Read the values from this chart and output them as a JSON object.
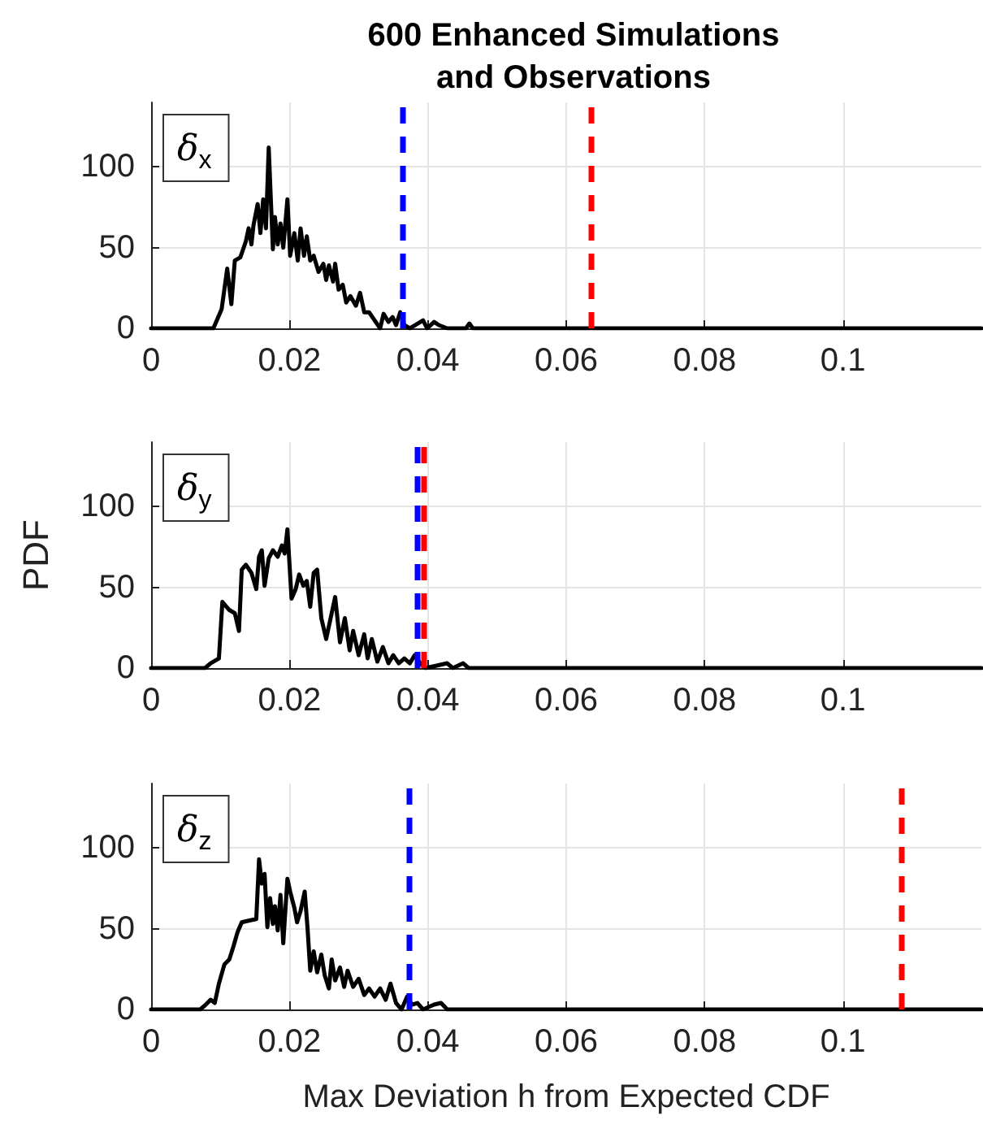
{
  "chart_data": [
    {
      "type": "line",
      "title": "600 Enhanced Simulations\nand Observations",
      "annotations": [
        "δ$_{x}$"
      ],
      "xlim": [
        0,
        0.12
      ],
      "xticks": [
        0,
        0.02,
        0.04,
        0.06,
        0.08,
        0.1
      ],
      "ylim": [
        0,
        140
      ],
      "yticks": [
        0,
        50,
        100
      ],
      "grid": true,
      "line_style": "solid",
      "marker": "none",
      "ref_lines": [
        {
          "axis": "x",
          "value": 0.0364,
          "color": "#0000ff",
          "line_style": "dashed"
        },
        {
          "axis": "x",
          "value": 0.0636,
          "color": "#ff0000",
          "line_style": "dashed"
        }
      ],
      "series": [
        {
          "color": "#000000",
          "x": [
            0,
            0.009,
            0.0102,
            0.011,
            0.0116,
            0.0121,
            0.0129,
            0.0137,
            0.0141,
            0.0145,
            0.0148,
            0.0154,
            0.0158,
            0.0162,
            0.0166,
            0.017,
            0.0176,
            0.0179,
            0.0183,
            0.0187,
            0.0191,
            0.0197,
            0.0201,
            0.0207,
            0.0212,
            0.0216,
            0.0221,
            0.0225,
            0.023,
            0.0235,
            0.0242,
            0.0249,
            0.0253,
            0.0257,
            0.0263,
            0.0266,
            0.0271,
            0.0277,
            0.0282,
            0.0288,
            0.0296,
            0.0302,
            0.0308,
            0.0315,
            0.0323,
            0.0331,
            0.0336,
            0.0343,
            0.0349,
            0.0354,
            0.036,
            0.0366,
            0.0374,
            0.0393,
            0.0399,
            0.0409,
            0.0416,
            0.0428,
            0.0455,
            0.046,
            0.0465,
            0.12
          ],
          "values": [
            0,
            0,
            12,
            37,
            15,
            42,
            44,
            54,
            62,
            52,
            64,
            77,
            59,
            80,
            62,
            112,
            49,
            69,
            52,
            65,
            50,
            80,
            45,
            59,
            42,
            62,
            45,
            57,
            42,
            45,
            35,
            40,
            30,
            39,
            29,
            40,
            24,
            27,
            16,
            20,
            14,
            22,
            10,
            10,
            5,
            0,
            9,
            4,
            7,
            2,
            10,
            2,
            0,
            5,
            0,
            4,
            2,
            0,
            0,
            3,
            0,
            0
          ]
        }
      ]
    },
    {
      "type": "line",
      "ylabel": "PDF",
      "annotations": [
        "δ$_{y}$"
      ],
      "xlim": [
        0,
        0.12
      ],
      "xticks": [
        0,
        0.02,
        0.04,
        0.06,
        0.08,
        0.1
      ],
      "ylim": [
        0,
        140
      ],
      "yticks": [
        0,
        50,
        100
      ],
      "grid": true,
      "line_style": "solid",
      "marker": "none",
      "ref_lines": [
        {
          "axis": "x",
          "value": 0.0385,
          "color": "#0000ff",
          "line_style": "dashed"
        },
        {
          "axis": "x",
          "value": 0.0394,
          "color": "#ff0000",
          "line_style": "dashed"
        }
      ],
      "series": [
        {
          "color": "#000000",
          "x": [
            0,
            0.0078,
            0.0086,
            0.0098,
            0.0103,
            0.0113,
            0.0121,
            0.0127,
            0.0131,
            0.0137,
            0.0145,
            0.0152,
            0.0156,
            0.016,
            0.0164,
            0.017,
            0.0176,
            0.0183,
            0.0189,
            0.0193,
            0.0197,
            0.0203,
            0.0209,
            0.0214,
            0.022,
            0.0225,
            0.023,
            0.0235,
            0.024,
            0.0246,
            0.0253,
            0.0261,
            0.0266,
            0.0273,
            0.028,
            0.0287,
            0.0292,
            0.03,
            0.0308,
            0.0313,
            0.0319,
            0.0327,
            0.0335,
            0.0343,
            0.035,
            0.0358,
            0.0366,
            0.0374,
            0.0381,
            0.0389,
            0.0397,
            0.0428,
            0.0436,
            0.0451,
            0.0459,
            0.12
          ],
          "values": [
            0,
            0,
            3,
            6,
            41,
            36,
            34,
            23,
            61,
            64,
            59,
            49,
            69,
            73,
            51,
            68,
            73,
            69,
            76,
            71,
            86,
            43,
            49,
            58,
            51,
            54,
            38,
            59,
            61,
            31,
            18,
            34,
            44,
            16,
            31,
            11,
            23,
            8,
            21,
            6,
            18,
            4,
            13,
            3,
            8,
            3,
            6,
            3,
            8,
            3,
            0,
            3,
            0,
            3,
            0,
            0
          ]
        }
      ]
    },
    {
      "type": "line",
      "xlabel": "Max Deviation h from Expected CDF",
      "annotations": [
        "δ$_{z}$"
      ],
      "xlim": [
        0,
        0.12
      ],
      "xticks": [
        0,
        0.02,
        0.04,
        0.06,
        0.08,
        0.1
      ],
      "ylim": [
        0,
        140
      ],
      "yticks": [
        0,
        50,
        100
      ],
      "grid": true,
      "line_style": "solid",
      "marker": "none",
      "ref_lines": [
        {
          "axis": "x",
          "value": 0.0373,
          "color": "#0000ff",
          "line_style": "dashed"
        },
        {
          "axis": "x",
          "value": 0.1084,
          "color": "#ff0000",
          "line_style": "dashed"
        }
      ],
      "series": [
        {
          "color": "#000000",
          "x": [
            0,
            0.0071,
            0.0079,
            0.0086,
            0.0092,
            0.0098,
            0.0106,
            0.0113,
            0.0119,
            0.0125,
            0.0131,
            0.0141,
            0.0152,
            0.0156,
            0.016,
            0.0164,
            0.0168,
            0.0172,
            0.0176,
            0.0179,
            0.0183,
            0.0187,
            0.0191,
            0.0197,
            0.0201,
            0.0207,
            0.0211,
            0.0216,
            0.0222,
            0.0226,
            0.023,
            0.0235,
            0.024,
            0.0246,
            0.0251,
            0.0257,
            0.0261,
            0.0266,
            0.0273,
            0.0279,
            0.0284,
            0.0292,
            0.03,
            0.0308,
            0.0315,
            0.0323,
            0.0331,
            0.0339,
            0.0346,
            0.0354,
            0.0362,
            0.037,
            0.0377,
            0.0385,
            0.0393,
            0.0409,
            0.0419,
            0.0428,
            0.12
          ],
          "values": [
            0,
            0,
            3,
            6,
            4,
            16,
            28,
            31,
            39,
            48,
            54,
            55,
            56,
            93,
            78,
            84,
            51,
            69,
            53,
            64,
            49,
            71,
            41,
            81,
            73,
            63,
            54,
            61,
            73,
            51,
            24,
            36,
            23,
            34,
            21,
            13,
            31,
            18,
            26,
            14,
            24,
            14,
            19,
            9,
            13,
            8,
            13,
            6,
            16,
            4,
            0,
            8,
            3,
            4,
            0,
            3,
            4,
            0,
            0
          ]
        }
      ]
    }
  ]
}
